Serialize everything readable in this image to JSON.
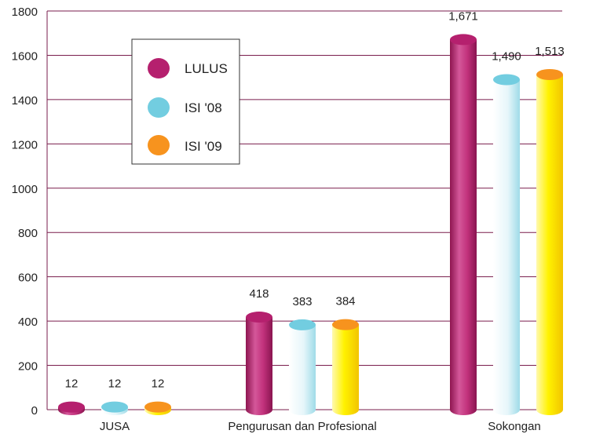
{
  "chart_data": {
    "type": "bar",
    "title": "",
    "xlabel": "",
    "ylabel": "",
    "ylim": [
      0,
      1800
    ],
    "yticks": [
      0,
      200,
      400,
      600,
      800,
      1000,
      1200,
      1400,
      1600,
      1800
    ],
    "categories": [
      "JUSA",
      "Pengurusan dan Profesional",
      "Sokongan"
    ],
    "series": [
      {
        "name": "LULUS",
        "values": [
          12,
          418,
          1671
        ],
        "labels": [
          "12",
          "418",
          "1,671"
        ],
        "color": "#b5206e"
      },
      {
        "name": "ISI '08",
        "values": [
          12,
          383,
          1490
        ],
        "labels": [
          "12",
          "383",
          "1,490"
        ],
        "color": "#72cde0"
      },
      {
        "name": "ISI '09",
        "values": [
          12,
          384,
          1513
        ],
        "labels": [
          "12",
          "384",
          "1,513"
        ],
        "color": "#f7931e"
      }
    ],
    "grid": true,
    "legend_position": "top-left",
    "bar_style": "3d-cylinder"
  }
}
